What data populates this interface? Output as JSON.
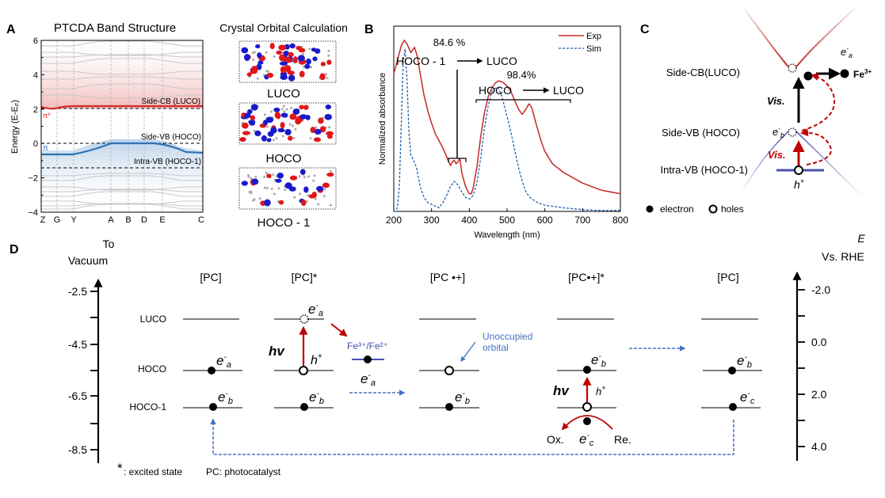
{
  "panels": {
    "A": {
      "letter": "A",
      "title": "PTCDA Band Structure",
      "ylabel": "Energy (E-Eₑ)",
      "ylabel_main": "Energy (E-E",
      "ylabel_sub": "F",
      "ylabel_close": ")",
      "yticks": [
        "6",
        "4",
        "2",
        "0",
        "−2",
        "−4"
      ],
      "ytick_values": [
        6,
        4,
        2,
        0,
        -2,
        -4
      ],
      "xticks": [
        "Z",
        "G",
        "Y",
        "A",
        "B",
        "D",
        "E",
        "C"
      ],
      "labels": {
        "cb": "Side-CB (LUCO)",
        "vb": "Side-VB (HOCO)",
        "intra": "Intra-VB (HOCO-1)",
        "pi_star": "π*",
        "pi": "π"
      },
      "colors": {
        "cb": "#d42a2a",
        "vb": "#2e74b5",
        "grey_band": "#c8c8c8"
      }
    },
    "orbitals": {
      "title": "Crystal Orbital Calculation",
      "items": [
        {
          "label": "LUCO"
        },
        {
          "label": "HOCO"
        },
        {
          "label": "HOCO - 1"
        }
      ]
    },
    "B": {
      "letter": "B",
      "annotation1_pct": "84.6 %",
      "annotation1_from": "HOCO - 1",
      "annotation1_to": "LUCO",
      "annotation2_pct": "98.4%",
      "annotation2_from": "HOCO",
      "annotation2_to": "LUCO"
    },
    "C": {
      "letter": "C",
      "levels": [
        "Side-CB(LUCO)",
        "Side-VB (HOCO)",
        "Intra-VB (HOCO-1)"
      ],
      "vis1": "Vis.",
      "vis2": "Vis.",
      "e_a": "e",
      "e_a_sub": "a",
      "e_b": "e",
      "e_b_sub": "b",
      "h": "h",
      "fe": "Fe",
      "fe_sup": "3+",
      "legend_electron": "electron",
      "legend_hole": "holes"
    },
    "D": {
      "letter": "D",
      "left_axis_title_1": "To",
      "left_axis_title_2": "Vacuum",
      "left_ticks": [
        "-2.5",
        "-4.5",
        "-6.5",
        "-8.5"
      ],
      "right_axis_title_1": "E",
      "right_axis_title_2": "Vs. RHE",
      "right_ticks": [
        "-2.0",
        "0.0",
        "2.0",
        "4.0"
      ],
      "level_labels": [
        "LUCO",
        "HOCO",
        "HOCO-1"
      ],
      "states": [
        "[PC]",
        "[PC]*",
        "[PC •+]",
        "[PC•+]*",
        "[PC]"
      ],
      "hv": "hv",
      "h_plus": "h",
      "fe_couple": "Fe³⁺/Fe²⁺",
      "unoccupied": [
        "Unoccupied",
        "orbital"
      ],
      "ox": "Ox.",
      "re": "Re.",
      "e": "e",
      "sub_a": "a",
      "sub_b": "b",
      "sub_c": "c",
      "footnote_star": "*",
      "footnote_excited": ": excited state",
      "footnote_pc": "PC: photocatalyst"
    }
  },
  "chart_data": {
    "type": "line",
    "title": "",
    "xlabel": "Wavelength (nm)",
    "ylabel": "Normalized absorbance",
    "xlim": [
      200,
      800
    ],
    "ylim": [
      0,
      1.05
    ],
    "xticks": [
      200,
      300,
      400,
      500,
      600,
      700,
      800
    ],
    "legend": "top-right",
    "series": [
      {
        "name": "Exp",
        "style": "solid",
        "color": "#c62828",
        "x": [
          200,
          210,
          220,
          228,
          235,
          245,
          255,
          262,
          270,
          280,
          290,
          300,
          310,
          320,
          330,
          340,
          350,
          355,
          360,
          365,
          370,
          375,
          380,
          390,
          400,
          405,
          410,
          420,
          430,
          440,
          450,
          460,
          470,
          478,
          490,
          500,
          510,
          520,
          530,
          540,
          550,
          558,
          565,
          575,
          590,
          600,
          620,
          650,
          700,
          750,
          800
        ],
        "y": [
          0.78,
          0.86,
          0.94,
          0.97,
          0.95,
          0.9,
          0.93,
          0.88,
          0.78,
          0.66,
          0.57,
          0.5,
          0.44,
          0.4,
          0.36,
          0.31,
          0.26,
          0.28,
          0.29,
          0.27,
          0.28,
          0.3,
          0.22,
          0.14,
          0.1,
          0.1,
          0.13,
          0.25,
          0.42,
          0.56,
          0.65,
          0.7,
          0.73,
          0.74,
          0.73,
          0.71,
          0.68,
          0.63,
          0.58,
          0.55,
          0.58,
          0.61,
          0.59,
          0.51,
          0.4,
          0.34,
          0.27,
          0.22,
          0.16,
          0.12,
          0.1
        ]
      },
      {
        "name": "Sim",
        "style": "dashed",
        "color": "#1f5fa8",
        "x": [
          200,
          205,
          210,
          215,
          220,
          225,
          230,
          235,
          240,
          245,
          250,
          260,
          270,
          280,
          290,
          300,
          310,
          320,
          330,
          340,
          350,
          360,
          370,
          380,
          390,
          400,
          410,
          420,
          430,
          440,
          450,
          460,
          470,
          476,
          485,
          495,
          510,
          520,
          530,
          540,
          550,
          560,
          580,
          600,
          650,
          700,
          750,
          800
        ],
        "y": [
          0.0,
          0.0,
          0.03,
          0.15,
          0.5,
          0.85,
          0.92,
          0.75,
          0.45,
          0.32,
          0.3,
          0.25,
          0.14,
          0.08,
          0.05,
          0.04,
          0.03,
          0.02,
          0.05,
          0.09,
          0.14,
          0.17,
          0.15,
          0.11,
          0.08,
          0.07,
          0.09,
          0.16,
          0.3,
          0.47,
          0.6,
          0.68,
          0.7,
          0.7,
          0.66,
          0.58,
          0.45,
          0.35,
          0.25,
          0.17,
          0.11,
          0.08,
          0.05,
          0.035,
          0.02,
          0.01,
          0.005,
          0.005
        ]
      }
    ]
  }
}
